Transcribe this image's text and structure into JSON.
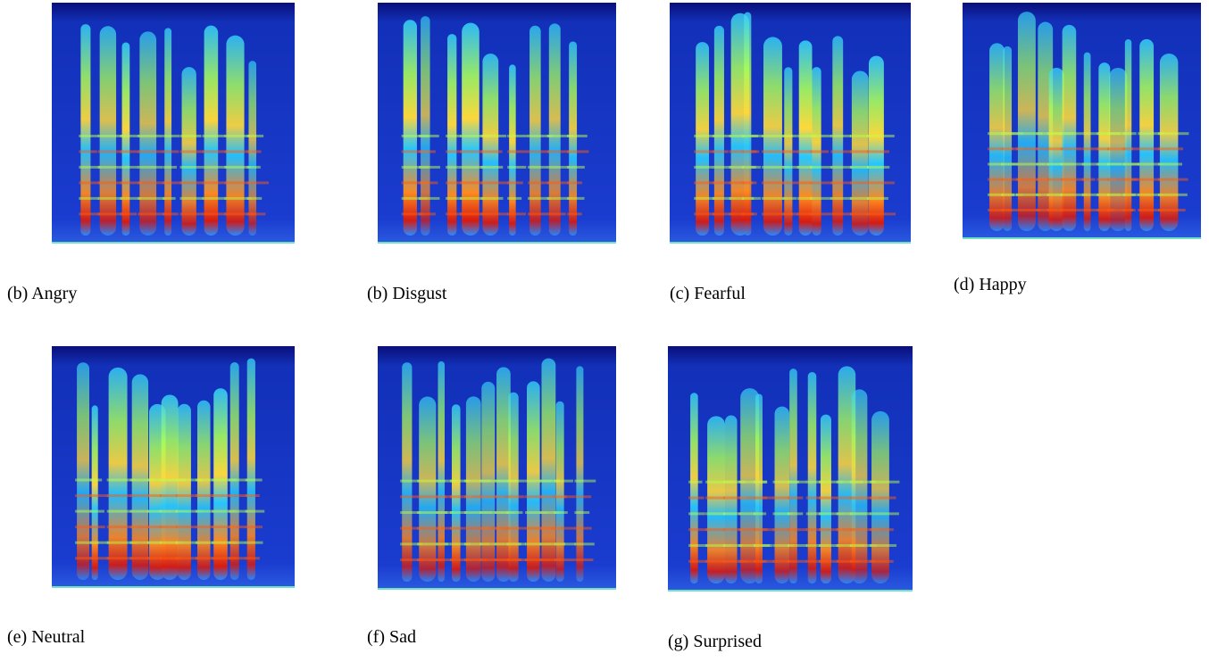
{
  "figures": [
    {
      "caption": "(b) Angry"
    },
    {
      "caption": "(b) Disgust"
    },
    {
      "caption": "(c) Fearful"
    },
    {
      "caption": "(d) Happy"
    },
    {
      "caption": "(e) Neutral"
    },
    {
      "caption": "(f) Sad"
    },
    {
      "caption": "(g) Surprised"
    }
  ]
}
